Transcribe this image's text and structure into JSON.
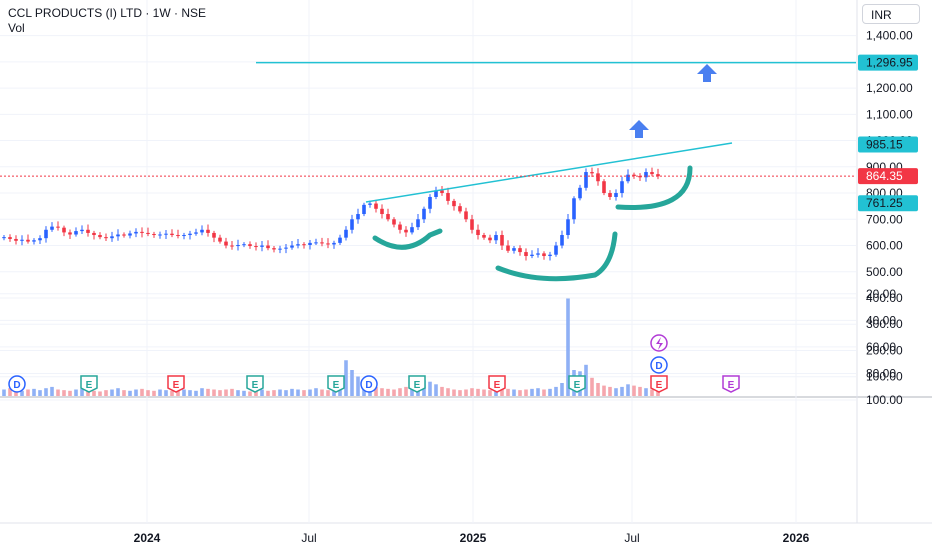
{
  "header": {
    "symbol_title": "CCL PRODUCTS (I) LTD · 1W · NSE",
    "volume_label": "Vol",
    "currency": "INR"
  },
  "colors": {
    "up": "#2962ff",
    "down": "#f23645",
    "vol_up": "#8fb0f5",
    "vol_down": "#f5a6ad",
    "trendline": "#22c1d3",
    "price_line": "#f23645",
    "marker_green": "#26a69a",
    "marker_red": "#f23645",
    "marker_blue": "#2962ff",
    "marker_purple": "#b13bd6",
    "arrow": "#4a7ff0",
    "grid": "#f0f3fa",
    "axis_text": "#131722"
  },
  "chart_data": {
    "type": "candlestick",
    "timeframe": "1W",
    "price_axis": {
      "ticks": [
        1400,
        1300,
        1200,
        1100,
        1000,
        900,
        800,
        700,
        600,
        500,
        400,
        300,
        200,
        100
      ],
      "tick_labels": [
        "1,400.00",
        "1,300.00",
        "1,200.00",
        "1,100.00",
        "1,000.00",
        "900.00",
        "800.00",
        "700.00",
        "600.00",
        "500.00",
        "400.00",
        "300.00",
        "200.00",
        "100.00"
      ]
    },
    "lower_axis": {
      "ticks": [
        100,
        80,
        60,
        40,
        20
      ],
      "tick_labels": [
        "100.00",
        "80.00",
        "60.00",
        "40.00",
        "20.00"
      ]
    },
    "time_axis": {
      "labels": [
        "2024",
        "Jul",
        "2025",
        "Jul",
        "2026"
      ]
    },
    "price_labels": {
      "target": {
        "value": 1296.95,
        "text": "1,296.95"
      },
      "trend_end": {
        "value": 985.15,
        "text": "985.15"
      },
      "last": {
        "value": 864.35,
        "text": "864.35"
      },
      "support": {
        "value": 761.25,
        "text": "761.25"
      }
    },
    "close_series": [
      632,
      625,
      618,
      622,
      615,
      620,
      628,
      660,
      672,
      668,
      650,
      642,
      655,
      660,
      648,
      640,
      632,
      628,
      635,
      642,
      638,
      646,
      652,
      648,
      644,
      640,
      642,
      645,
      640,
      638,
      640,
      645,
      650,
      660,
      648,
      630,
      615,
      600,
      598,
      602,
      605,
      598,
      595,
      600,
      590,
      585,
      588,
      592,
      600,
      605,
      602,
      610,
      612,
      608,
      604,
      610,
      630,
      660,
      700,
      720,
      755,
      760,
      740,
      720,
      700,
      680,
      660,
      650,
      670,
      700,
      740,
      785,
      810,
      800,
      770,
      750,
      730,
      700,
      660,
      640,
      630,
      620,
      640,
      600,
      580,
      590,
      575,
      560,
      565,
      570,
      560,
      565,
      600,
      640,
      700,
      780,
      820,
      880,
      875,
      845,
      800,
      785,
      800,
      845,
      870,
      865,
      860,
      880,
      872,
      864
    ],
    "volume_series": [
      10,
      12,
      9,
      8,
      10,
      11,
      9,
      12,
      14,
      10,
      9,
      8,
      10,
      11,
      9,
      8,
      7,
      9,
      10,
      12,
      9,
      8,
      10,
      11,
      9,
      8,
      10,
      9,
      8,
      9,
      10,
      9,
      8,
      12,
      11,
      10,
      9,
      10,
      11,
      9,
      8,
      7,
      9,
      10,
      8,
      9,
      10,
      9,
      11,
      10,
      9,
      10,
      12,
      10,
      9,
      12,
      18,
      55,
      40,
      30,
      22,
      18,
      14,
      12,
      11,
      10,
      12,
      14,
      16,
      20,
      24,
      22,
      18,
      14,
      12,
      10,
      9,
      10,
      12,
      11,
      10,
      9,
      10,
      12,
      11,
      10,
      9,
      10,
      11,
      12,
      10,
      11,
      14,
      20,
      150,
      40,
      38,
      48,
      28,
      20,
      16,
      14,
      12,
      14,
      18,
      16,
      14,
      12,
      10,
      8
    ],
    "events": [
      {
        "letter": "D",
        "kind": "dividend"
      },
      {
        "letter": "E",
        "kind": "earnings"
      },
      {
        "letter": "E",
        "kind": "earnings"
      },
      {
        "letter": "E",
        "kind": "earnings"
      },
      {
        "letter": "E",
        "kind": "earnings"
      },
      {
        "letter": "D",
        "kind": "dividend"
      },
      {
        "letter": "E",
        "kind": "earnings"
      },
      {
        "letter": "E",
        "kind": "earnings"
      },
      {
        "letter": "E",
        "kind": "earnings"
      },
      {
        "letter": "E",
        "kind": "earnings"
      },
      {
        "letter": "D",
        "kind": "dividend"
      },
      {
        "letter": "E",
        "kind": "earnings"
      }
    ]
  }
}
